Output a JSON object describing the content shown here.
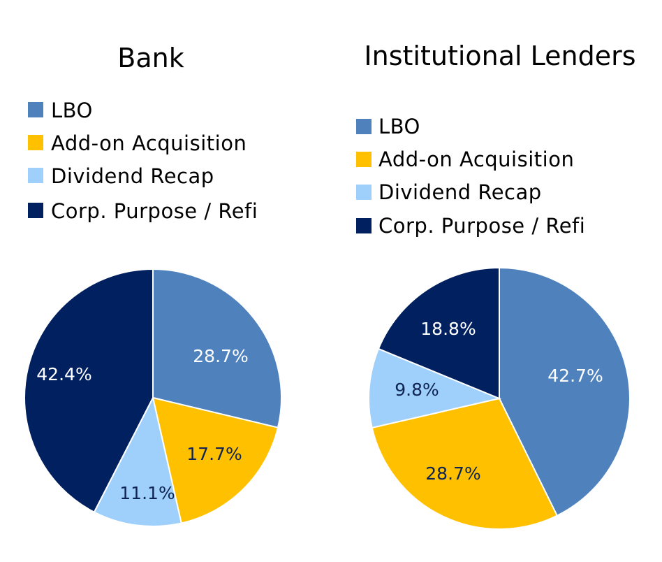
{
  "chart_data": [
    {
      "type": "pie",
      "title": "Bank",
      "categories": [
        "LBO",
        "Add-on Acquisition",
        "Dividend Recap",
        "Corp. Purpose / Refi"
      ],
      "values": [
        28.7,
        17.7,
        11.1,
        42.4
      ],
      "labels": [
        "28.7%",
        "17.7%",
        "11.1%",
        "42.4%"
      ],
      "legend_position": "top"
    },
    {
      "type": "pie",
      "title": "Institutional Lenders",
      "categories": [
        "LBO",
        "Add-on Acquisition",
        "Dividend Recap",
        "Corp. Purpose / Refi"
      ],
      "values": [
        42.7,
        28.7,
        9.8,
        18.8
      ],
      "labels": [
        "42.7%",
        "28.7%",
        "9.8%",
        "18.8%"
      ],
      "legend_position": "top"
    }
  ],
  "colors": {
    "series": [
      "#4f81bd",
      "#ffc000",
      "#9fcffb",
      "#002060"
    ],
    "label_text": [
      "#ffffff",
      "#0f2453",
      "#0f2453",
      "#ffffff"
    ]
  }
}
